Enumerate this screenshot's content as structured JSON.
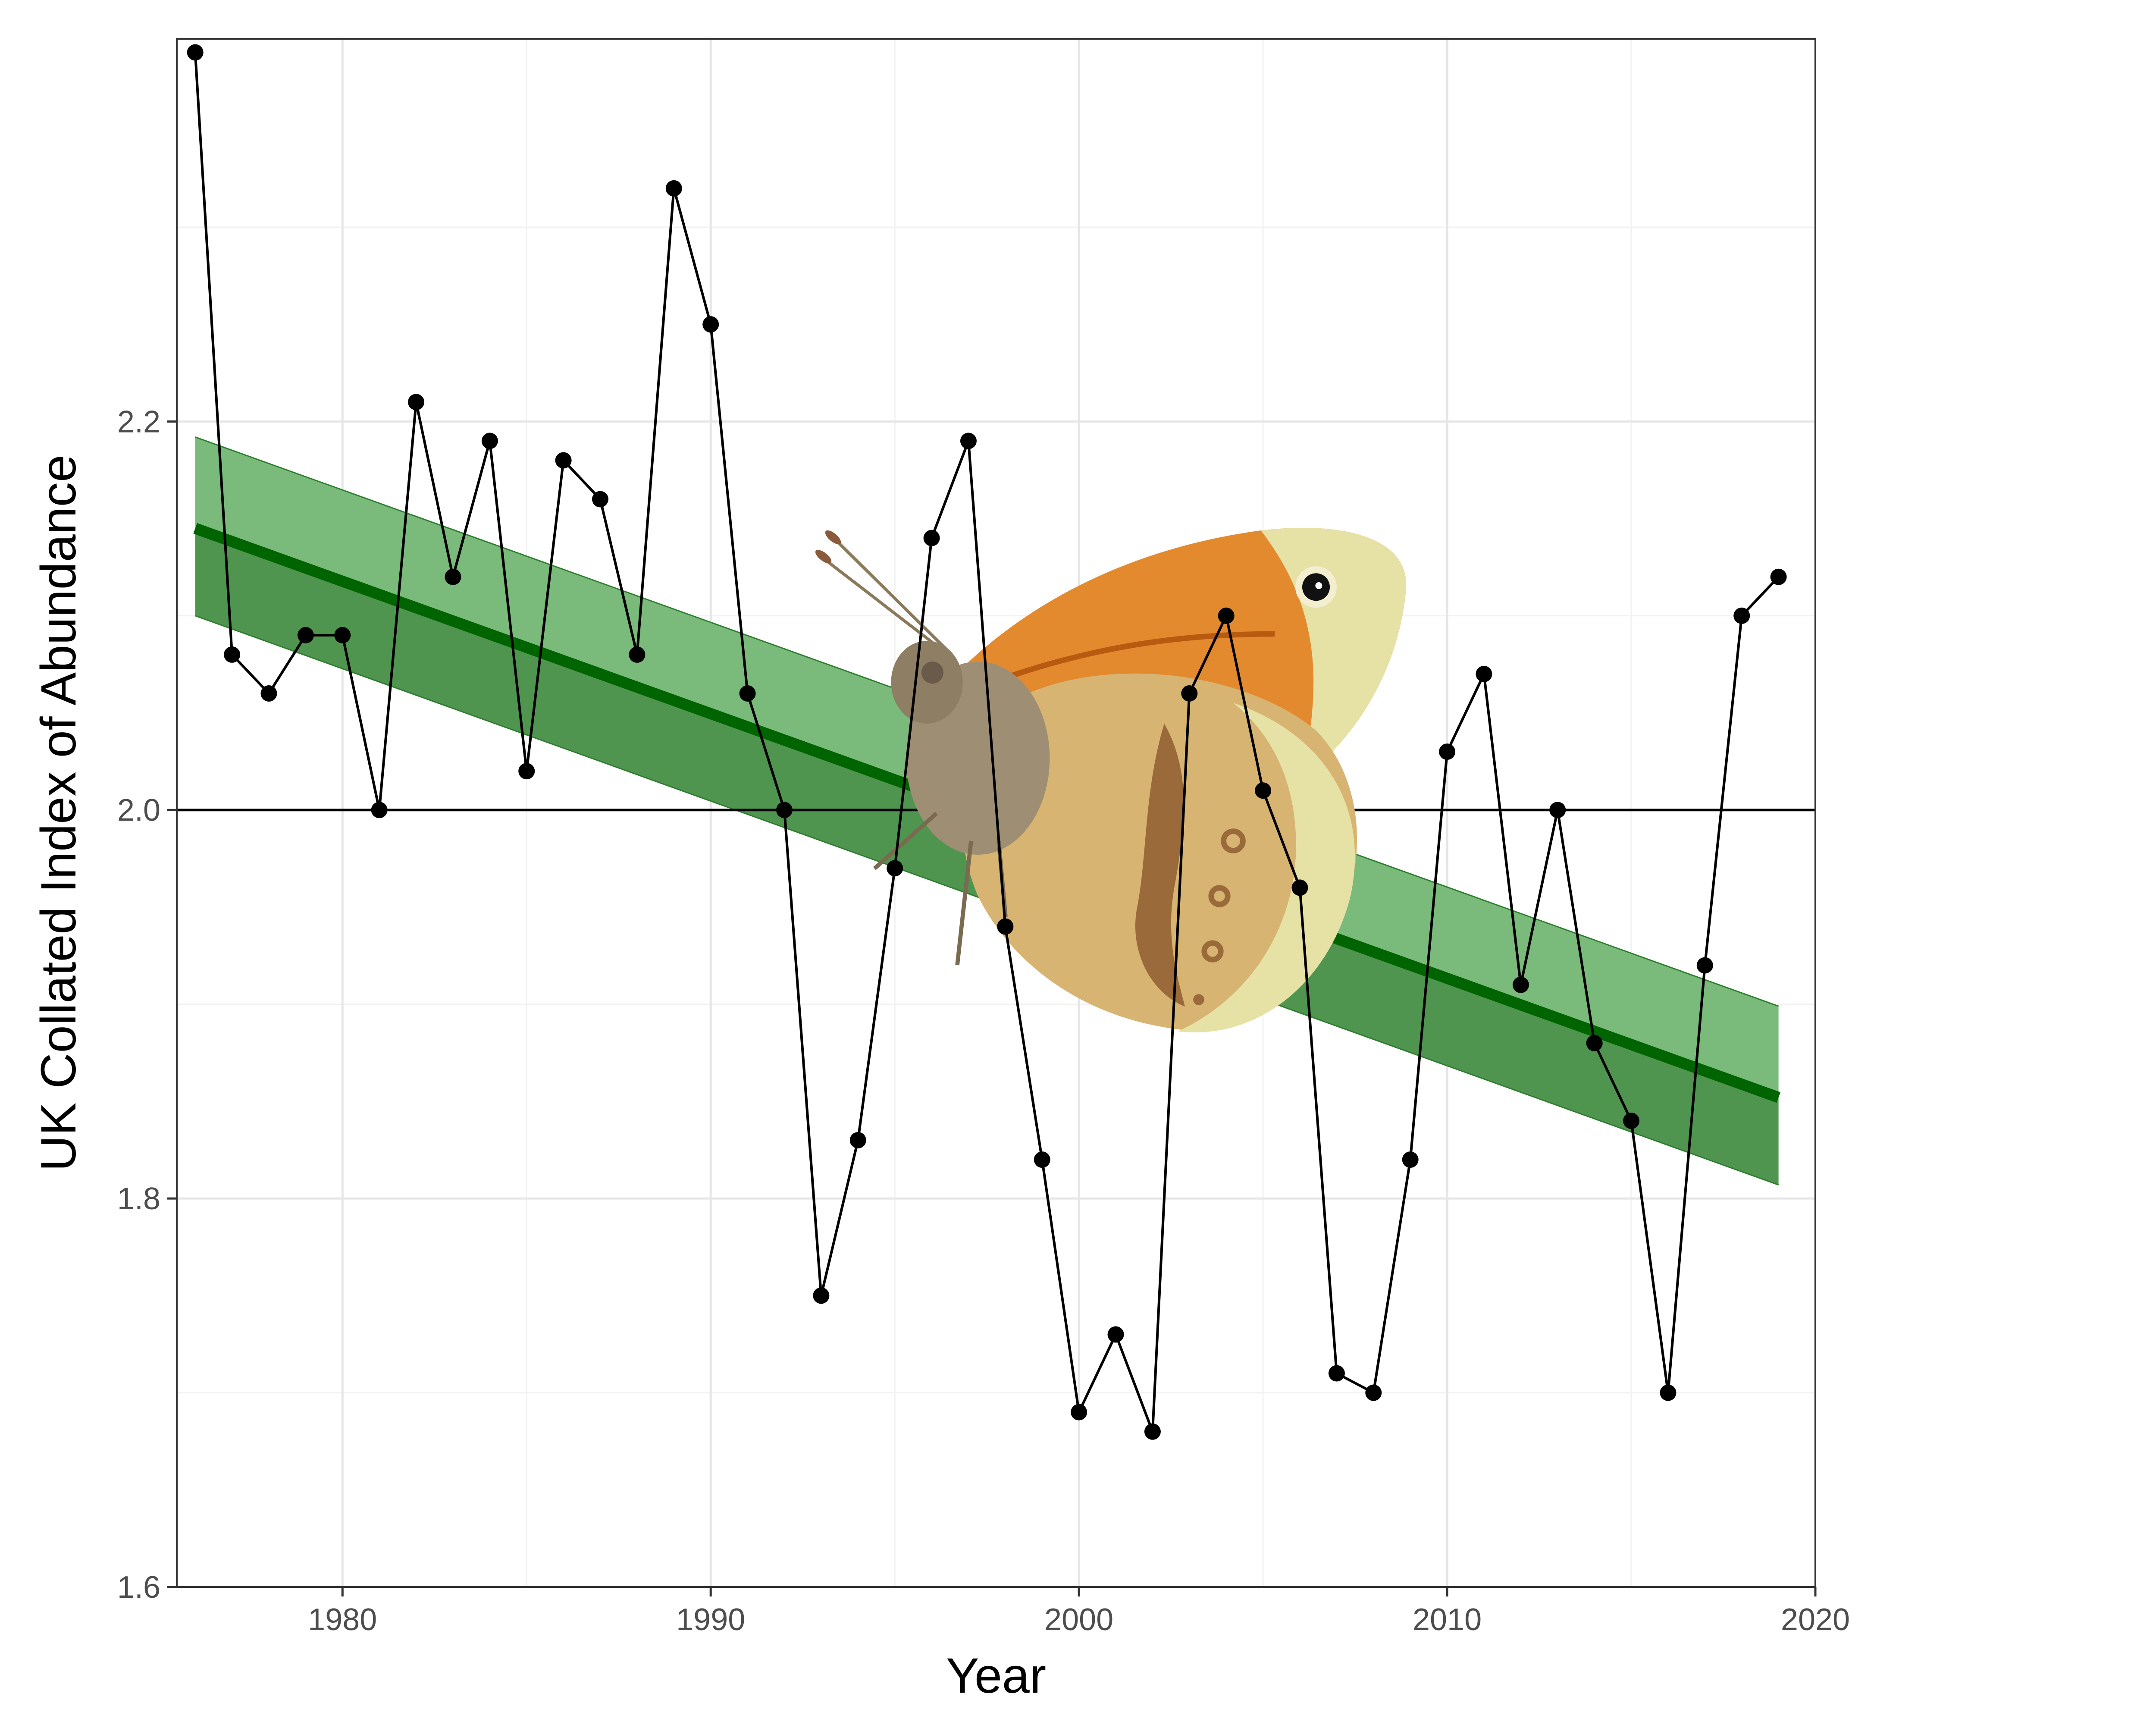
{
  "chart_data": {
    "type": "line",
    "xlabel": "Year",
    "ylabel": "UK Collated Index of Abundance",
    "xlim": [
      1975.5,
      2020
    ],
    "ylim": [
      1.6,
      2.397
    ],
    "x_ticks": [
      1980,
      1990,
      2000,
      2010,
      2020
    ],
    "y_ticks": [
      1.6,
      1.8,
      2.0,
      2.2
    ],
    "x_tick_labels": [
      "1980",
      "1990",
      "2000",
      "2010",
      "2020"
    ],
    "y_tick_labels": [
      "1.6",
      "1.8",
      "2.0",
      "2.2"
    ],
    "x_minor_ticks": [
      1985,
      1995,
      2005,
      2015
    ],
    "y_minor_ticks": [
      1.7,
      1.9,
      2.1,
      2.3
    ],
    "grid": true,
    "reference_line_y": 2.0,
    "series": [
      {
        "x": [
          1976,
          1977,
          1978,
          1979,
          1980,
          1981,
          1982,
          1983,
          1984,
          1985,
          1986,
          1987,
          1988,
          1989,
          1990,
          1991,
          1992,
          1993,
          1994,
          1995,
          1996,
          1997,
          1998,
          1999,
          2000,
          2001,
          2002,
          2003,
          2004,
          2005,
          2006,
          2007,
          2008,
          2009,
          2010,
          2011,
          2012,
          2013,
          2014,
          2015,
          2016,
          2017,
          2018,
          2019
        ],
        "values": [
          2.39,
          2.08,
          2.06,
          2.09,
          2.09,
          2.0,
          2.21,
          2.12,
          2.19,
          2.02,
          2.18,
          2.16,
          2.08,
          2.32,
          2.25,
          2.06,
          2.0,
          1.75,
          1.83,
          1.97,
          2.14,
          2.19,
          1.94,
          1.82,
          1.69,
          1.73,
          1.68,
          2.06,
          2.1,
          2.01,
          1.96,
          1.71,
          1.7,
          1.82,
          2.03,
          2.07,
          1.91,
          2.0,
          1.88,
          1.84,
          1.7,
          1.92,
          2.1,
          2.12
        ],
        "color": "#000000"
      }
    ],
    "trend": {
      "x": [
        1976,
        2019
      ],
      "fit": [
        2.145,
        1.852
      ],
      "lower": [
        2.1,
        1.807
      ],
      "upper": [
        2.192,
        1.899
      ],
      "line_color": "#006400",
      "band_color": "#2e8b2e"
    },
    "image_overlay": "butterfly-illustration"
  }
}
